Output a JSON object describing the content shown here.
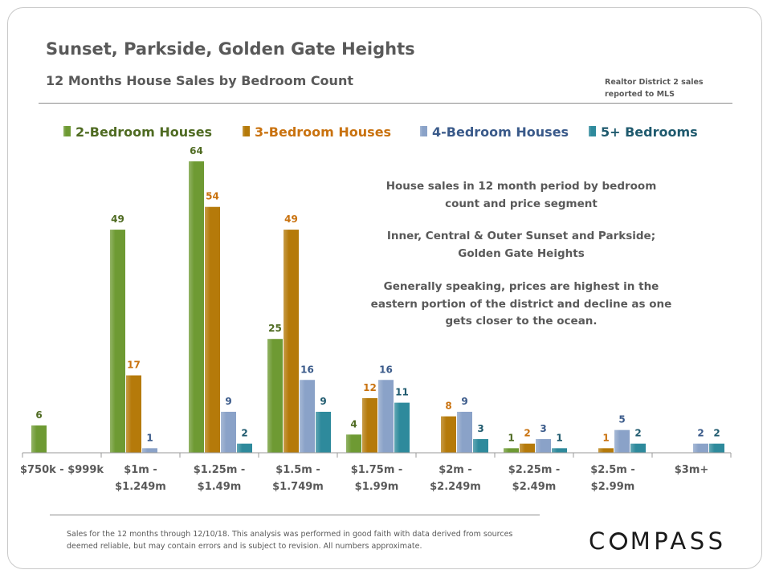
{
  "header": {
    "title": "Sunset, Parkside, Golden Gate Heights",
    "subtitle": "12 Months House Sales by Bedroom Count",
    "source_line1": "Realtor District 2 sales",
    "source_line2": "reported to MLS"
  },
  "annotation": {
    "p1_line1": "House sales in 12 month period by bedroom",
    "p1_line2": "count and price segment",
    "p2_line1": "Inner, Central & Outer Sunset and Parkside;",
    "p2_line2": "Golden Gate Heights",
    "p3_line1": "Generally speaking, prices are highest in the",
    "p3_line2": "eastern portion of the district and decline as one",
    "p3_line3": "gets closer to the ocean."
  },
  "footer": {
    "line1": "Sales for the 12 months through 12/10/18. This analysis was performed in good faith with data derived from sources",
    "line2": "deemed reliable, but may contain errors and is subject to revision. All numbers approximate."
  },
  "brand": {
    "logo_part1": "C",
    "logo_part2": "MPASS"
  },
  "chart_data": {
    "type": "bar",
    "title": "",
    "xlabel": "",
    "ylabel": "",
    "ylim": [
      0,
      64
    ],
    "grid": false,
    "legend_position": "top",
    "categories": [
      [
        "$750k - $999k"
      ],
      [
        "$1m -",
        "$1.249m"
      ],
      [
        "$1.25m -",
        "$1.49m"
      ],
      [
        "$1.5m -",
        "$1.749m"
      ],
      [
        "$1.75m -",
        "$1.99m"
      ],
      [
        "$2m -",
        "$2.249m"
      ],
      [
        "$2.25m -",
        "$2.49m"
      ],
      [
        "$2.5m -",
        "$2.99m"
      ],
      [
        "$3m+"
      ]
    ],
    "series": [
      {
        "name": "2-Bedroom Houses",
        "color": "#6e9a33",
        "label_color": "#4f6b22",
        "values": [
          6,
          49,
          64,
          25,
          4,
          null,
          1,
          null,
          null
        ]
      },
      {
        "name": "3-Bedroom Houses",
        "color": "#b57a0a",
        "label_color": "#c9720f",
        "values": [
          null,
          17,
          54,
          49,
          12,
          8,
          2,
          1,
          null
        ]
      },
      {
        "name": "4-Bedroom Houses",
        "color": "#8aa2c8",
        "label_color": "#3a5a8a",
        "values": [
          null,
          1,
          9,
          16,
          16,
          9,
          3,
          5,
          2
        ]
      },
      {
        "name": "5+ Bedrooms",
        "color": "#2e8a9c",
        "label_color": "#1f5a6e",
        "values": [
          null,
          null,
          2,
          9,
          11,
          3,
          1,
          2,
          2
        ]
      }
    ]
  }
}
